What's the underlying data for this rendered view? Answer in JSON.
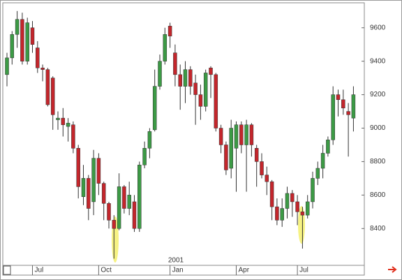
{
  "chart_data": {
    "type": "candlestick",
    "categories": [
      null,
      null,
      null,
      null,
      null,
      "Jul",
      null,
      null,
      null,
      null,
      null,
      null,
      null,
      null,
      null,
      null,
      null,
      null,
      "Oct",
      null,
      null,
      null,
      null,
      null,
      null,
      null,
      null,
      null,
      null,
      null,
      null,
      null,
      "Jan",
      null,
      null,
      null,
      null,
      null,
      null,
      null,
      null,
      null,
      null,
      null,
      null,
      "Apr",
      null,
      null,
      null,
      null,
      null,
      null,
      null,
      null,
      null,
      null,
      null,
      "Jul",
      null,
      null,
      null,
      null,
      null,
      null,
      null,
      null,
      null,
      null,
      null
    ],
    "open": [
      9320,
      9420,
      9560,
      9650,
      9400,
      9600,
      9480,
      9360,
      9350,
      9300,
      9050,
      9060,
      9010,
      9020,
      8880,
      8590,
      8700,
      8560,
      8820,
      8670,
      8550,
      8450,
      8400,
      8650,
      8520,
      8560,
      8400,
      8780,
      8880,
      8990,
      9250,
      9400,
      9610,
      9450,
      9320,
      9250,
      9350,
      9270,
      9200,
      9130,
      9360,
      9320,
      9000,
      8900,
      8760,
      8880,
      9020,
      8900,
      9020,
      8880,
      8800,
      8720,
      8680,
      8530,
      8450,
      8520,
      8610,
      8560,
      8500,
      8480,
      8560,
      8700,
      8760,
      8850,
      8930,
      9200,
      9170,
      9100,
      9060
    ],
    "high": [
      9450,
      9580,
      9700,
      9690,
      9660,
      9640,
      9520,
      9380,
      9360,
      9310,
      9100,
      9120,
      9060,
      9040,
      8900,
      8780,
      8720,
      8870,
      8850,
      8680,
      8560,
      8480,
      8730,
      8660,
      8680,
      8600,
      8800,
      8920,
      9000,
      9350,
      9440,
      9600,
      9630,
      9500,
      9380,
      9400,
      9370,
      9320,
      9260,
      9350,
      9370,
      9330,
      9020,
      8920,
      9050,
      9040,
      9040,
      9050,
      9030,
      8900,
      8850,
      8770,
      8690,
      8580,
      8580,
      8650,
      8630,
      8600,
      8530,
      8600,
      8740,
      8800,
      8900,
      8950,
      9250,
      9230,
      9230,
      9150,
      9250
    ],
    "low": [
      9250,
      9380,
      9480,
      9380,
      9380,
      9450,
      9330,
      9280,
      9130,
      8990,
      8990,
      8950,
      8920,
      8850,
      8580,
      8540,
      8450,
      8480,
      8600,
      8450,
      8400,
      8220,
      8390,
      8490,
      8480,
      8380,
      8380,
      8760,
      8820,
      8980,
      9230,
      9380,
      9480,
      9250,
      9110,
      9150,
      9200,
      9020,
      9050,
      9100,
      9180,
      8980,
      8850,
      8720,
      8700,
      8620,
      8850,
      8620,
      8830,
      8650,
      8700,
      8600,
      8450,
      8420,
      8410,
      8460,
      8470,
      8420,
      8280,
      8460,
      8520,
      8660,
      8700,
      8830,
      8900,
      9070,
      9080,
      8830,
      8980
    ],
    "close": [
      9420,
      9560,
      9650,
      9400,
      9630,
      9500,
      9360,
      9350,
      9140,
      9080,
      9060,
      9020,
      9030,
      8880,
      8650,
      8700,
      8520,
      8820,
      8670,
      8550,
      8450,
      8400,
      8650,
      8520,
      8600,
      8400,
      8780,
      8880,
      8980,
      9250,
      9400,
      9560,
      9550,
      9320,
      9250,
      9350,
      9250,
      9200,
      9130,
      9330,
      9320,
      9000,
      8900,
      8750,
      9000,
      9020,
      8900,
      9020,
      8900,
      8800,
      8720,
      8680,
      8530,
      8450,
      8520,
      8610,
      8560,
      8500,
      8480,
      8560,
      8700,
      8760,
      8850,
      8930,
      9200,
      9170,
      9120,
      9080,
      9200
    ],
    "up_color": "#3c9a45",
    "down_color": "#c3262c",
    "annotation": "2001",
    "ylim": [
      8180,
      9745
    ],
    "yticks": [
      8400,
      8600,
      8800,
      9000,
      9200,
      9400,
      9600
    ]
  }
}
